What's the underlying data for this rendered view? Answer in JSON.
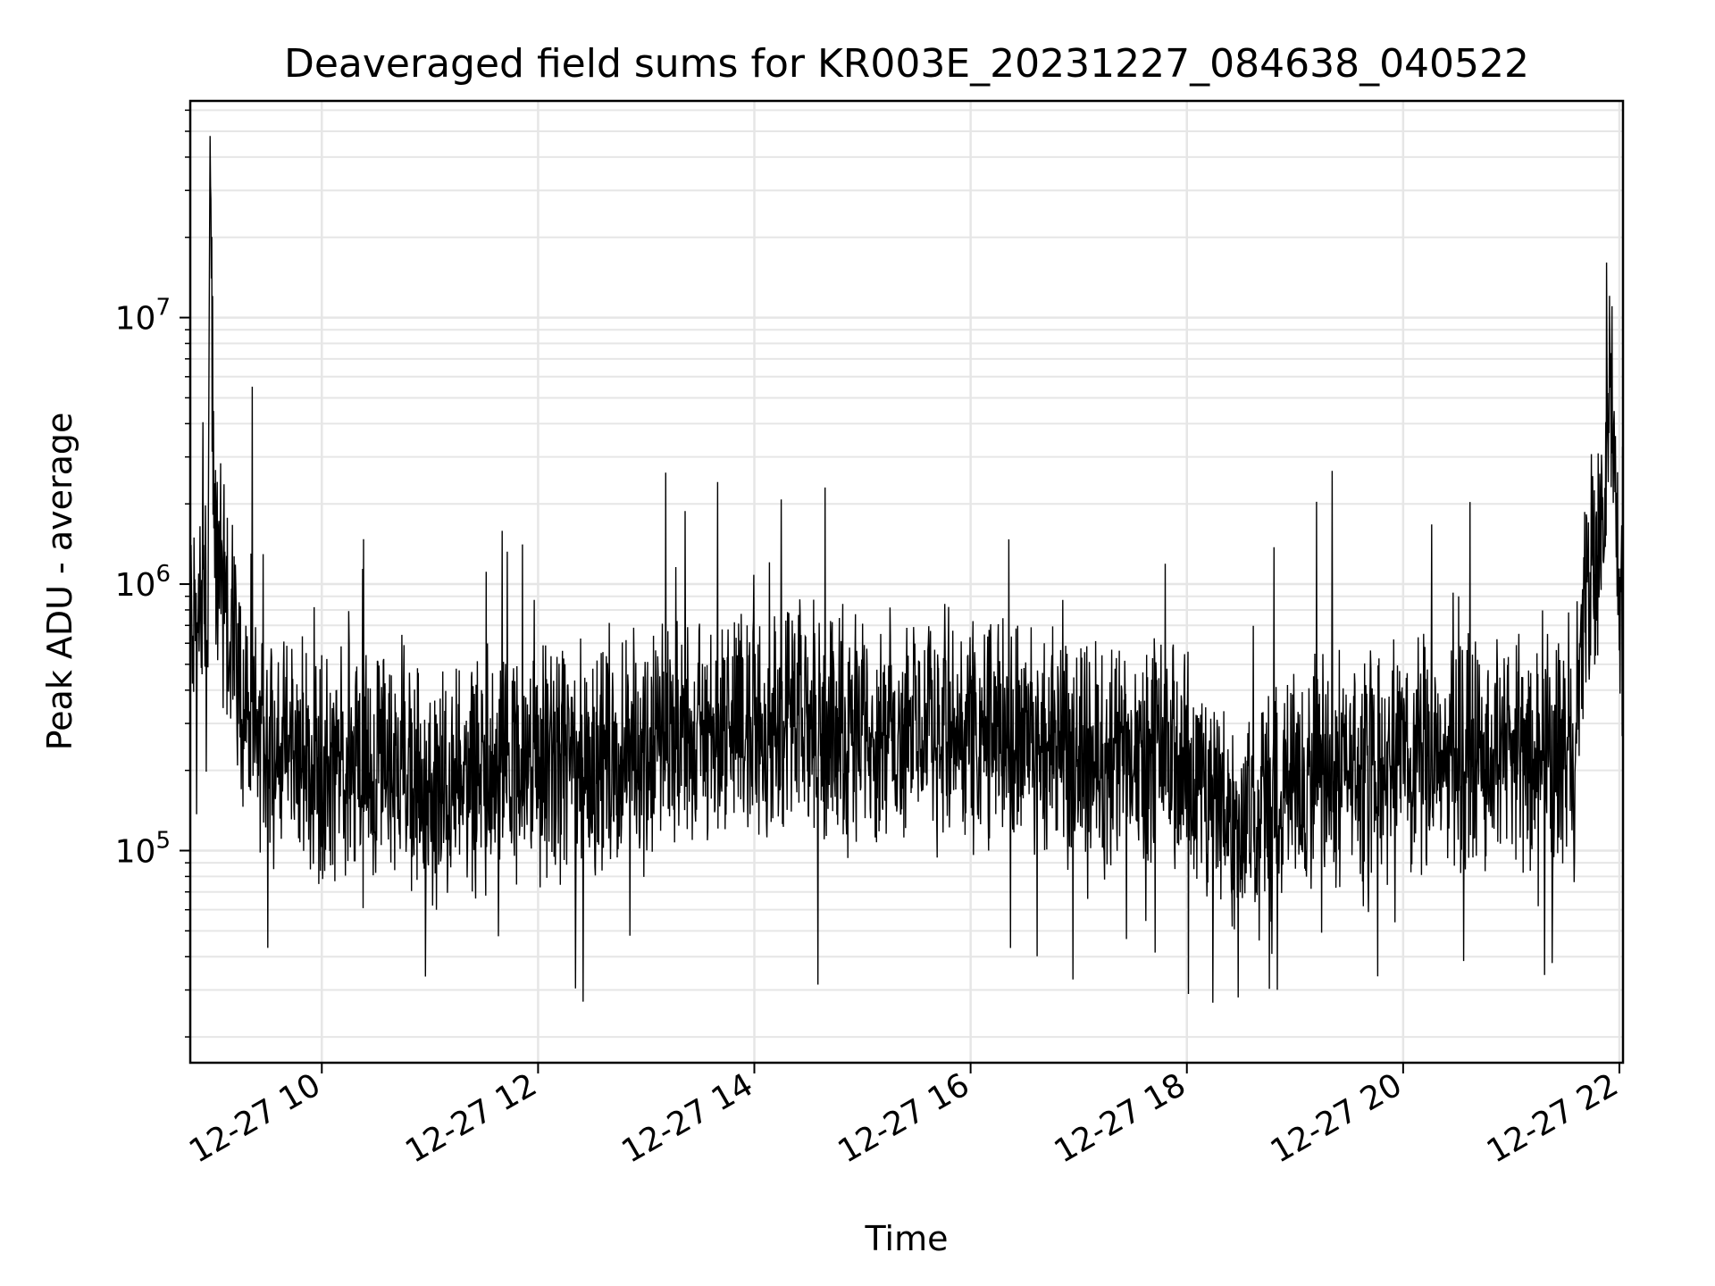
{
  "chart_data": {
    "type": "line",
    "title": "Deaveraged field sums for KR003E_20231227_084638_040522",
    "xlabel": "Time",
    "ylabel": "Peak ADU - average",
    "x_range": [
      "2023-12-27 08:47:00",
      "2023-12-27 22:02:00"
    ],
    "ylim": [
      16000,
      65000000
    ],
    "y_scale": "log",
    "grid": true,
    "legend": "none",
    "x_ticks": [
      {
        "t": "2023-12-27 10:00",
        "label": "12-27 10"
      },
      {
        "t": "2023-12-27 12:00",
        "label": "12-27 12"
      },
      {
        "t": "2023-12-27 14:00",
        "label": "12-27 14"
      },
      {
        "t": "2023-12-27 16:00",
        "label": "12-27 16"
      },
      {
        "t": "2023-12-27 18:00",
        "label": "12-27 18"
      },
      {
        "t": "2023-12-27 20:00",
        "label": "12-27 20"
      },
      {
        "t": "2023-12-27 22:00",
        "label": "12-27 22"
      }
    ],
    "y_ticks": [
      {
        "value": 100000,
        "base": "10",
        "exp": "5"
      },
      {
        "value": 1000000,
        "base": "10",
        "exp": "6"
      },
      {
        "value": 10000000,
        "base": "10",
        "exp": "7"
      }
    ],
    "colors": {
      "line": "#000000",
      "grid": "#e6e6e6",
      "axes": "#000000"
    },
    "series": [
      {
        "x": [
          "2023-12-27 08:47",
          "2023-12-27 08:52",
          "2023-12-27 08:57",
          "2023-12-27 08:58",
          "2023-12-27 09:00",
          "2023-12-27 09:02",
          "2023-12-27 09:05",
          "2023-12-27 09:08",
          "2023-12-27 09:12",
          "2023-12-27 09:15",
          "2023-12-27 09:20",
          "2023-12-27 09:25",
          "2023-12-27 09:30",
          "2023-12-27 09:40",
          "2023-12-27 09:50",
          "2023-12-27 10:00",
          "2023-12-27 10:15",
          "2023-12-27 10:30",
          "2023-12-27 10:43",
          "2023-12-27 11:00",
          "2023-12-27 11:10",
          "2023-12-27 11:30",
          "2023-12-27 12:00",
          "2023-12-27 12:30",
          "2023-12-27 12:45",
          "2023-12-27 13:00",
          "2023-12-27 13:12",
          "2023-12-27 13:30",
          "2023-12-27 13:38",
          "2023-12-27 14:00",
          "2023-12-27 14:30",
          "2023-12-27 15:00",
          "2023-12-27 15:15",
          "2023-12-27 15:30",
          "2023-12-27 16:00",
          "2023-12-27 16:25",
          "2023-12-27 16:40",
          "2023-12-27 17:00",
          "2023-12-27 17:30",
          "2023-12-27 17:47",
          "2023-12-27 18:00",
          "2023-12-27 18:20",
          "2023-12-27 18:30",
          "2023-12-27 18:45",
          "2023-12-27 19:00",
          "2023-12-27 19:12",
          "2023-12-27 19:30",
          "2023-12-27 19:50",
          "2023-12-27 20:00",
          "2023-12-27 20:30",
          "2023-12-27 21:00",
          "2023-12-27 21:20",
          "2023-12-27 21:35",
          "2023-12-27 21:40",
          "2023-12-27 21:45",
          "2023-12-27 21:52",
          "2023-12-27 21:55",
          "2023-12-27 22:00",
          "2023-12-27 22:02"
        ],
        "y": [
          800000,
          700000,
          900000,
          48000000,
          1500000,
          1200000,
          1000000,
          900000,
          600000,
          400000,
          300000,
          250000,
          240000,
          230000,
          220000,
          210000,
          215000,
          200000,
          250000,
          150000,
          170000,
          190000,
          200000,
          220000,
          230000,
          240000,
          260000,
          270000,
          280000,
          300000,
          290000,
          290000,
          300000,
          290000,
          280000,
          270000,
          250000,
          230000,
          220000,
          230000,
          200000,
          150000,
          120000,
          140000,
          180000,
          200000,
          210000,
          220000,
          230000,
          230000,
          240000,
          220000,
          220000,
          800000,
          1200000,
          1500000,
          6800000,
          1000000,
          1100000
        ]
      }
    ]
  }
}
